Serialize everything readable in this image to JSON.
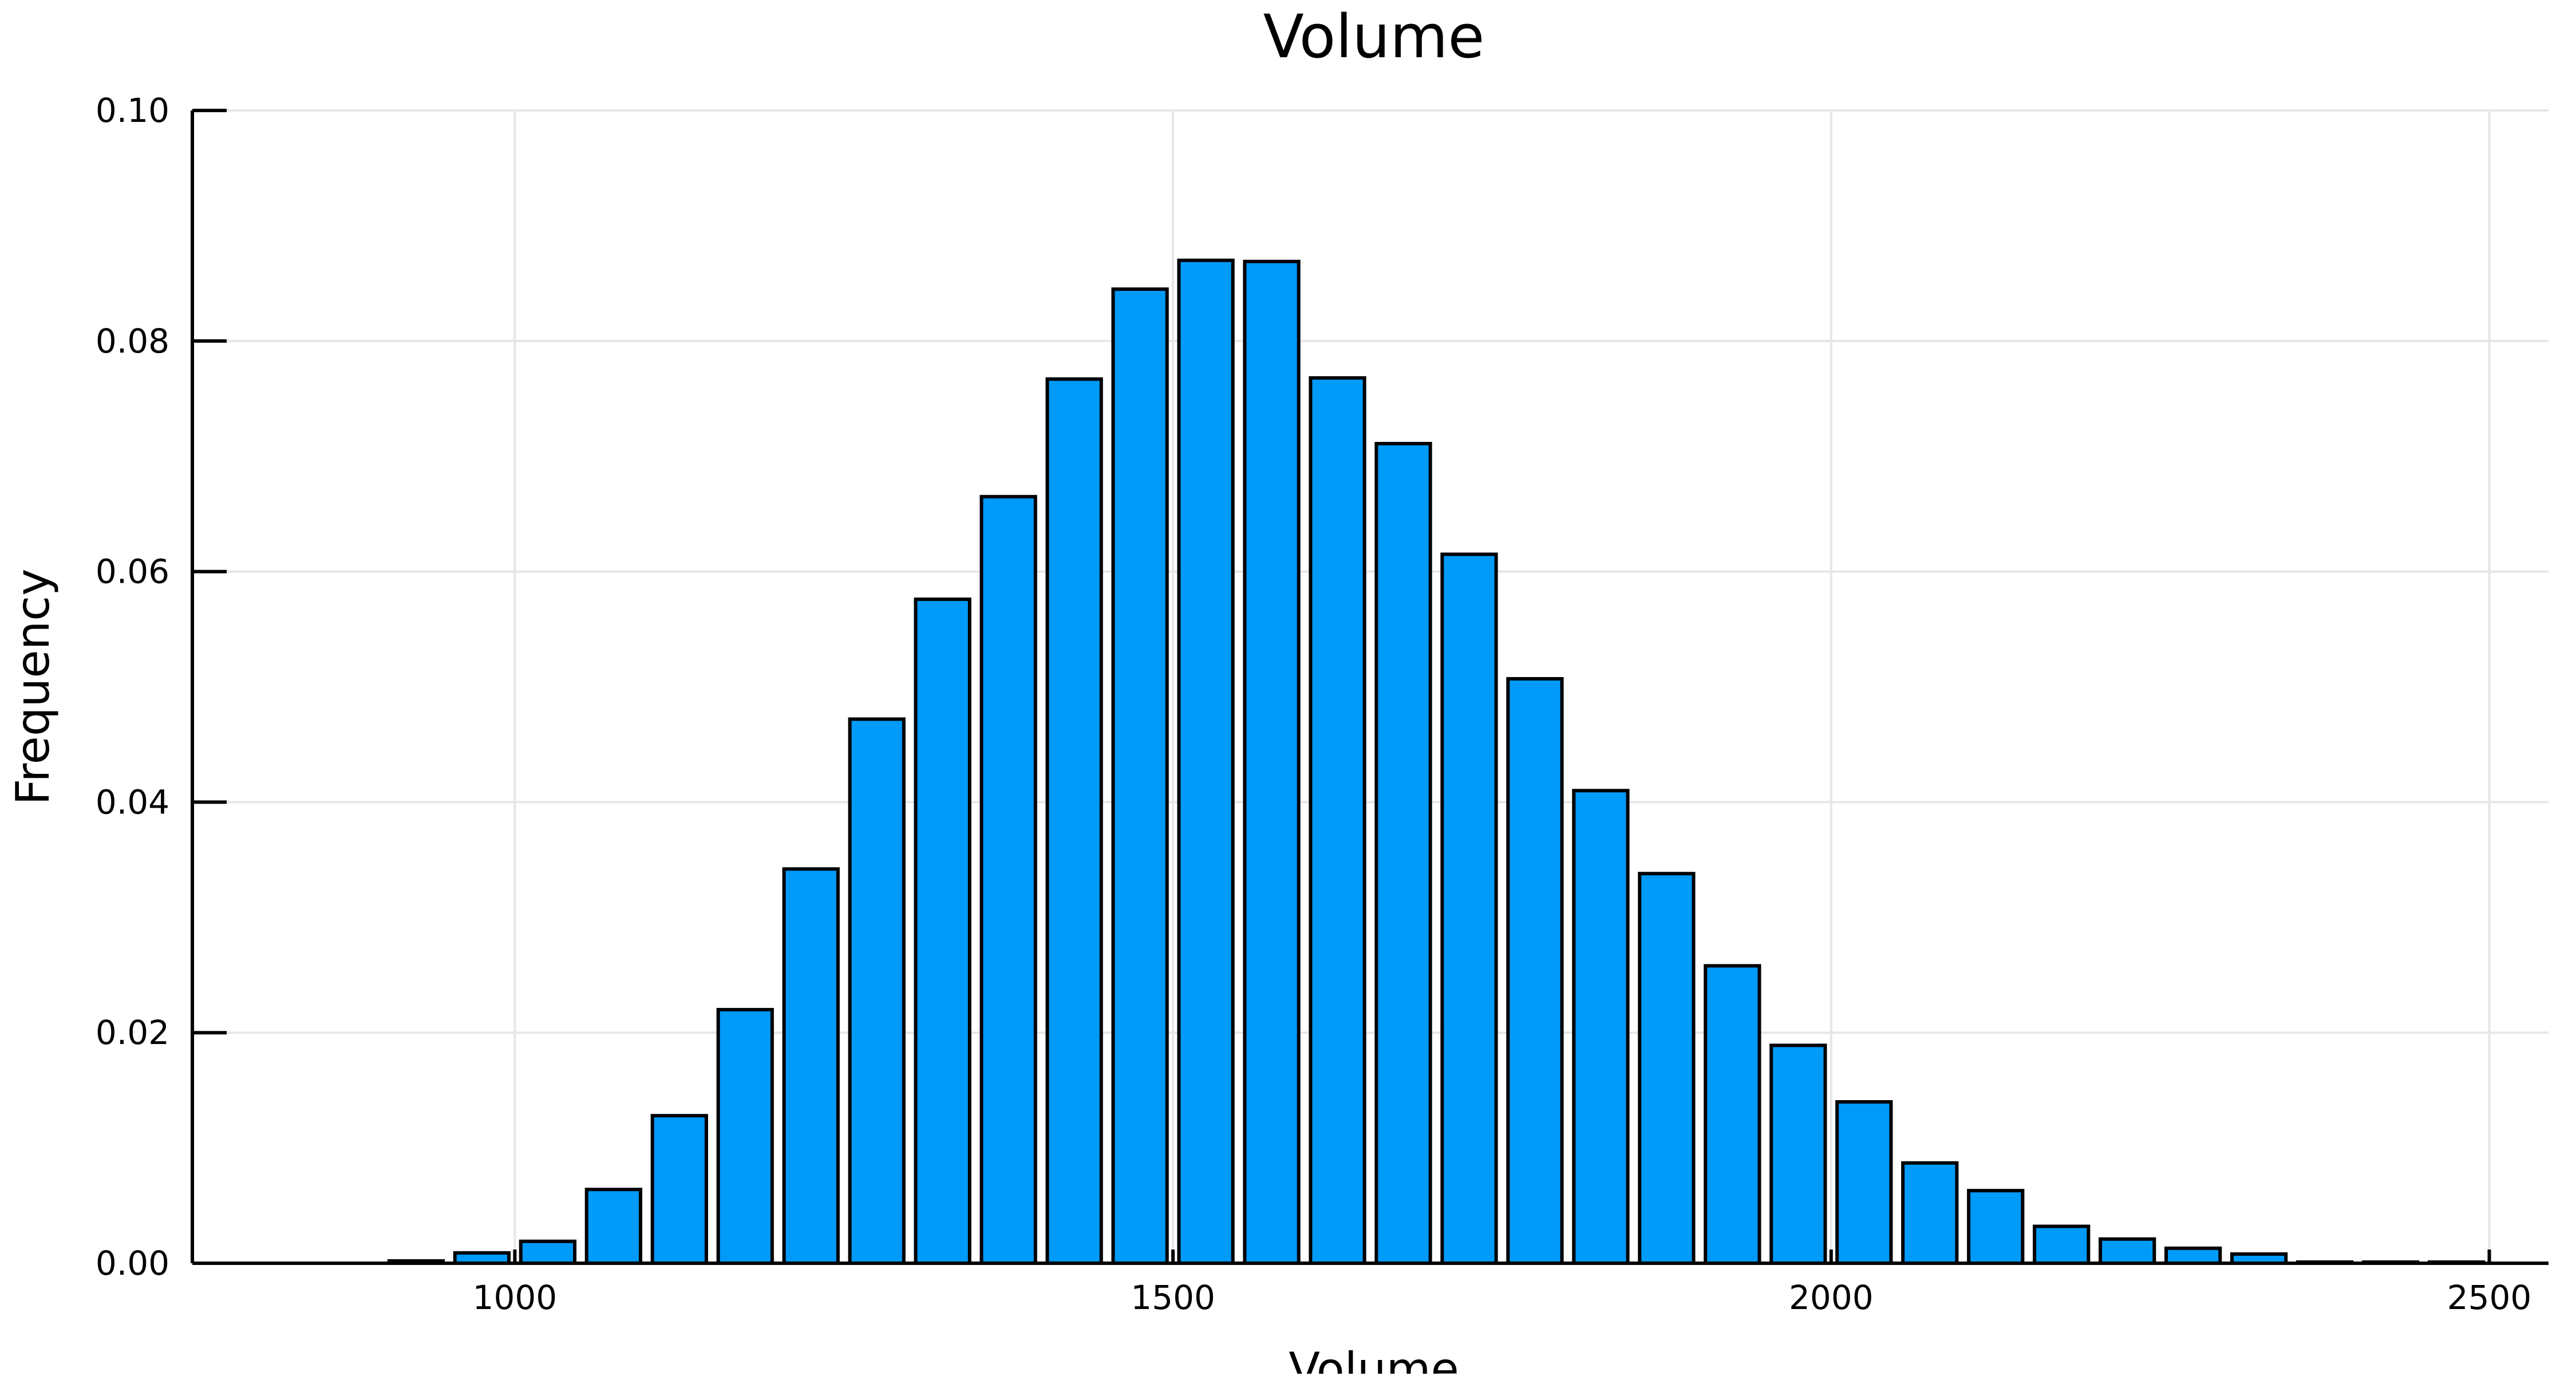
{
  "chart_data": {
    "type": "bar",
    "title": "Volume",
    "xlabel": "Volume",
    "ylabel": "Frequency",
    "xlim": [
      755,
      2545
    ],
    "ylim": [
      0,
      0.1
    ],
    "x_ticks": [
      1000,
      1500,
      2000,
      2500
    ],
    "y_ticks": [
      0.0,
      0.02,
      0.04,
      0.06,
      0.08,
      0.1
    ],
    "x_tick_labels": [
      "1000",
      "1500",
      "2000",
      "2500"
    ],
    "y_tick_labels": [
      "0.00",
      "0.02",
      "0.04",
      "0.06",
      "0.08",
      "0.10"
    ],
    "grid": true,
    "legend": false,
    "bar_color": "#009af9",
    "bin_width": 50,
    "bins": [
      {
        "start": 850,
        "end": 900,
        "value": 0.0
      },
      {
        "start": 900,
        "end": 950,
        "value": 0.0002
      },
      {
        "start": 950,
        "end": 1000,
        "value": 0.0009
      },
      {
        "start": 1000,
        "end": 1050,
        "value": 0.0019
      },
      {
        "start": 1050,
        "end": 1100,
        "value": 0.0064
      },
      {
        "start": 1100,
        "end": 1150,
        "value": 0.0128
      },
      {
        "start": 1150,
        "end": 1200,
        "value": 0.022
      },
      {
        "start": 1200,
        "end": 1250,
        "value": 0.0342
      },
      {
        "start": 1250,
        "end": 1300,
        "value": 0.0472
      },
      {
        "start": 1300,
        "end": 1350,
        "value": 0.0576
      },
      {
        "start": 1350,
        "end": 1400,
        "value": 0.0665
      },
      {
        "start": 1400,
        "end": 1450,
        "value": 0.0767
      },
      {
        "start": 1450,
        "end": 1500,
        "value": 0.0845
      },
      {
        "start": 1500,
        "end": 1550,
        "value": 0.087
      },
      {
        "start": 1550,
        "end": 1600,
        "value": 0.0869
      },
      {
        "start": 1600,
        "end": 1650,
        "value": 0.0768
      },
      {
        "start": 1650,
        "end": 1700,
        "value": 0.0711
      },
      {
        "start": 1700,
        "end": 1750,
        "value": 0.0615
      },
      {
        "start": 1750,
        "end": 1800,
        "value": 0.0507
      },
      {
        "start": 1800,
        "end": 1850,
        "value": 0.041
      },
      {
        "start": 1850,
        "end": 1900,
        "value": 0.0338
      },
      {
        "start": 1900,
        "end": 1950,
        "value": 0.0258
      },
      {
        "start": 1950,
        "end": 2000,
        "value": 0.0189
      },
      {
        "start": 2000,
        "end": 2050,
        "value": 0.014
      },
      {
        "start": 2050,
        "end": 2100,
        "value": 0.0087
      },
      {
        "start": 2100,
        "end": 2150,
        "value": 0.0063
      },
      {
        "start": 2150,
        "end": 2200,
        "value": 0.0032
      },
      {
        "start": 2200,
        "end": 2250,
        "value": 0.0021
      },
      {
        "start": 2250,
        "end": 2300,
        "value": 0.0013
      },
      {
        "start": 2300,
        "end": 2350,
        "value": 0.0008
      },
      {
        "start": 2350,
        "end": 2400,
        "value": 0.0001
      },
      {
        "start": 2400,
        "end": 2450,
        "value": 0.0001
      },
      {
        "start": 2450,
        "end": 2500,
        "value": 0.0001
      }
    ]
  }
}
